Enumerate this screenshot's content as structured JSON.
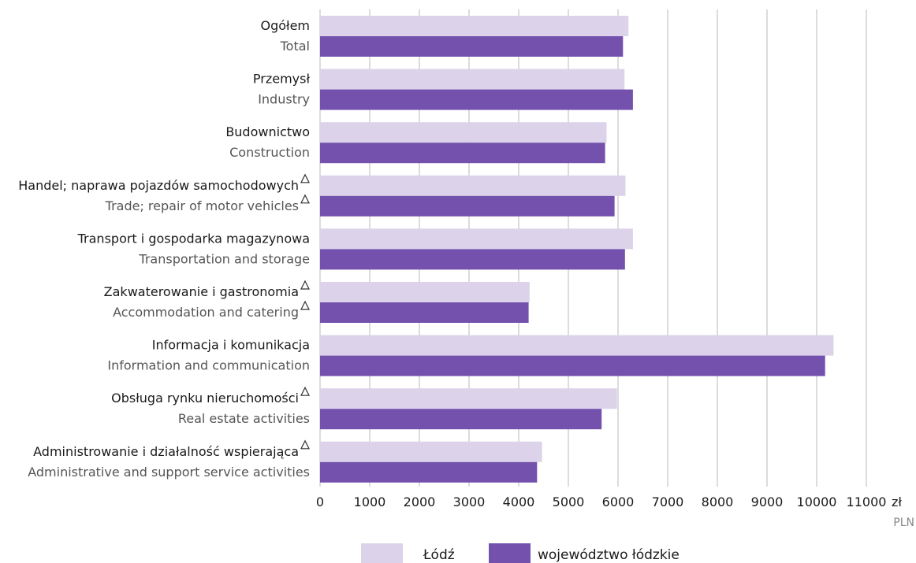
{
  "chart_data": {
    "type": "bar",
    "orientation": "horizontal",
    "categories": [
      {
        "pl": "Ogółem",
        "en": "Total",
        "flag_pl": false,
        "flag_en": false
      },
      {
        "pl": "Przemysł",
        "en": "Industry",
        "flag_pl": false,
        "flag_en": false
      },
      {
        "pl": "Budownictwo",
        "en": "Construction",
        "flag_pl": false,
        "flag_en": false
      },
      {
        "pl": "Handel; naprawa pojazdów samochodowych",
        "en": "Trade; repair of motor vehicles",
        "flag_pl": true,
        "flag_en": true
      },
      {
        "pl": "Transport i gospodarka magazynowa",
        "en": "Transportation and storage",
        "flag_pl": false,
        "flag_en": false
      },
      {
        "pl": "Zakwaterowanie i gastronomia",
        "en": "Accommodation and catering",
        "flag_pl": true,
        "flag_en": true
      },
      {
        "pl": "Informacja i komunikacja",
        "en": "Information and communication",
        "flag_pl": false,
        "flag_en": false
      },
      {
        "pl": "Obsługa rynku nieruchomości",
        "en": "Real estate activities",
        "flag_pl": true,
        "flag_en": false
      },
      {
        "pl": "Administrowanie i działalność wspierająca",
        "en": "Administrative and support service activities",
        "flag_pl": true,
        "flag_en": false
      }
    ],
    "series": [
      {
        "name": "Łódź",
        "color": "#dcd3ea",
        "values": [
          6210,
          6130,
          5770,
          6150,
          6300,
          4220,
          10340,
          5980,
          4470
        ]
      },
      {
        "name": "województwo łódzkie",
        "color": "#7451ad",
        "values": [
          6100,
          6300,
          5740,
          5930,
          6140,
          4200,
          10170,
          5670,
          4370
        ]
      }
    ],
    "x_ticks": [
      "0",
      "1000",
      "2000",
      "3000",
      "4000",
      "5000",
      "6000",
      "7000",
      "8000",
      "9000",
      "10000",
      "11000"
    ],
    "xlim": [
      0,
      11000
    ],
    "unit_pl": "zł",
    "unit_en": "PLN",
    "grid": true,
    "legend_position": "bottom-center",
    "flag_symbol": "triangle"
  }
}
